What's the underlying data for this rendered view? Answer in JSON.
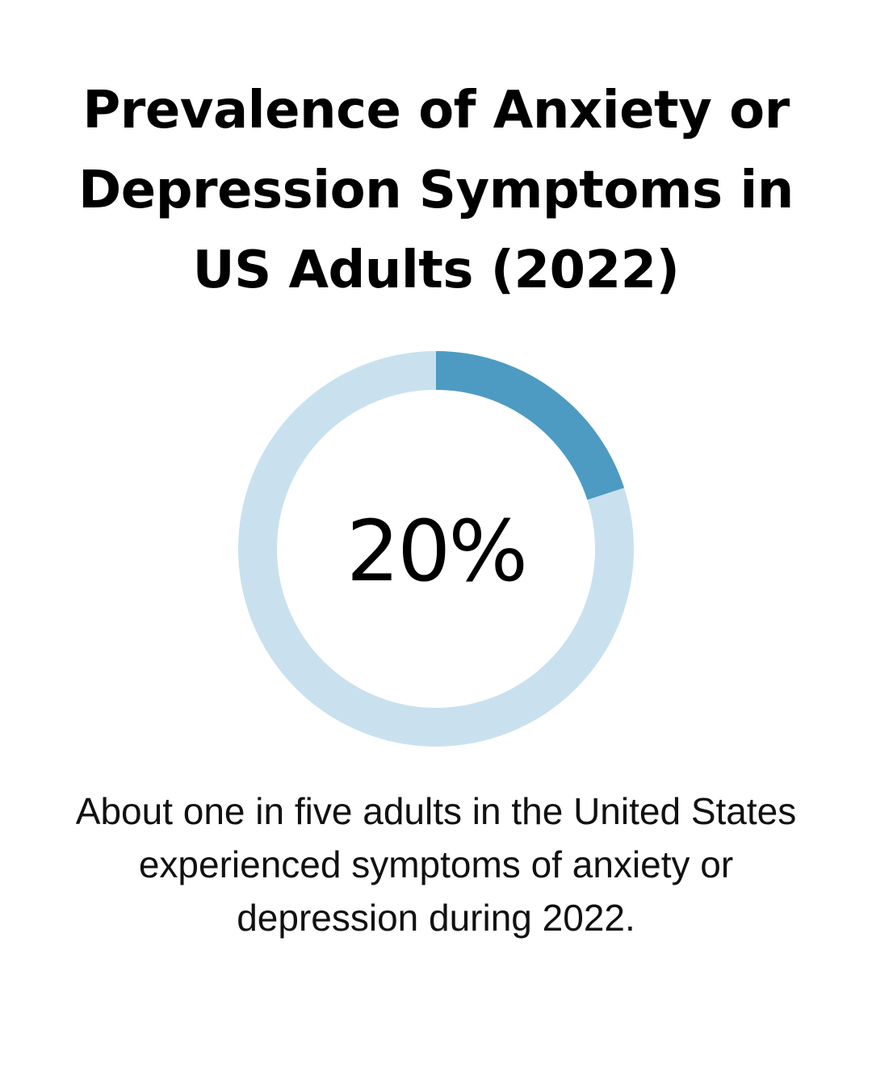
{
  "title": "Prevalence of Anxiety or Depression Symptoms in US Adults (2022)",
  "chart_data": {
    "type": "donut",
    "value": 20,
    "max": 100,
    "center_label": "20%",
    "caption": "About one in five adults in the United States experienced symptoms of anxiety or depression during 2022."
  },
  "colors": {
    "highlight": "#4d9bc3",
    "remainder": "#c9e1ee",
    "text": "#000000"
  }
}
